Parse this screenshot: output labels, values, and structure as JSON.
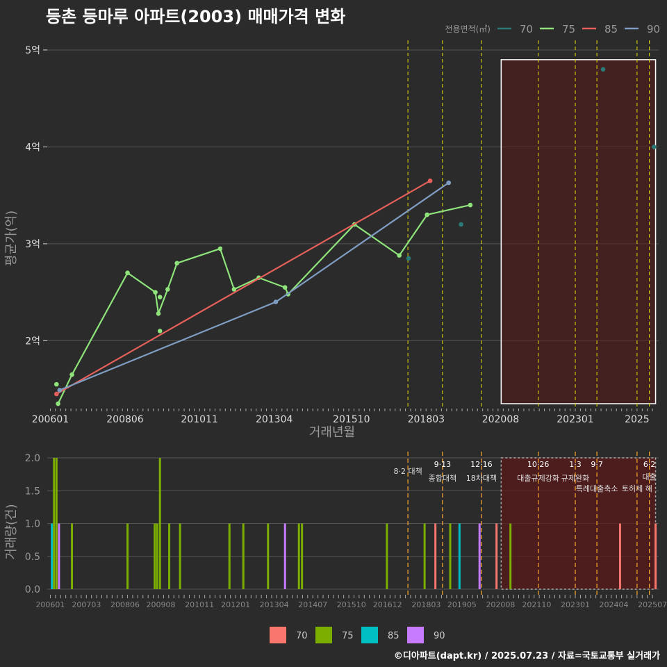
{
  "title": "등촌 등마루 아파트(2003) 매매가격 변화",
  "credit": "©디아파트(dapt.kr) / 2025.07.23 / 자료=국토교통부 실거래가",
  "colors": {
    "background": "#2b2b2b",
    "grid": "#555555",
    "price_70": "#2b7a78",
    "price_75": "#8ee37a",
    "price_85": "#e5605a",
    "price_90": "#7f9cc2",
    "bar_70": "#f8766d",
    "bar_75": "#7cae00",
    "bar_85": "#00bfc4",
    "bar_90": "#c77cff",
    "policy_line": "#e8e000",
    "policy_line_bottom": "#f0a030",
    "highlight_fill": "#5a1a1a",
    "text": "#dddddd",
    "axis_title": "#999999"
  },
  "chart_data": [
    {
      "type": "line",
      "title": "등촌 등마루 아파트(2003) 매매가격 변화",
      "xlabel": "거래년월",
      "ylabel": "평균가(억)",
      "ylim": [
        1.3,
        5.1
      ],
      "xlim": [
        2005.9,
        2025.7
      ],
      "x_tick_labels": [
        "200601",
        "200806",
        "201011",
        "201304",
        "201510",
        "201803",
        "202008",
        "202301",
        "2025"
      ],
      "x_tick_values": [
        2006.0,
        2008.42,
        2010.83,
        2013.25,
        2015.75,
        2018.17,
        2020.58,
        2023.0,
        2025.0
      ],
      "y_tick_labels": [
        "2억",
        "3억",
        "4억",
        "5억"
      ],
      "y_tick_values": [
        2,
        3,
        4,
        5
      ],
      "legend_title": "전용면적(㎡)",
      "legend_position": "top-right",
      "legend": [
        "70",
        "75",
        "85",
        "90"
      ],
      "series": [
        {
          "name": "70",
          "line": false,
          "points": [
            [
              2017.6,
              2.85
            ],
            [
              2019.3,
              3.2
            ],
            [
              2023.9,
              4.8
            ],
            [
              2025.55,
              4.0
            ]
          ]
        },
        {
          "name": "75",
          "line": true,
          "points": [
            [
              2006.25,
              1.35
            ],
            [
              2006.7,
              1.65
            ],
            [
              2008.5,
              2.7
            ],
            [
              2009.4,
              2.5
            ],
            [
              2009.5,
              2.28
            ],
            [
              2009.8,
              2.53
            ],
            [
              2010.1,
              2.8
            ],
            [
              2011.5,
              2.95
            ],
            [
              2011.95,
              2.53
            ],
            [
              2012.75,
              2.65
            ],
            [
              2013.6,
              2.55
            ],
            [
              2013.7,
              2.48
            ],
            [
              2015.85,
              3.2
            ],
            [
              2017.3,
              2.88
            ],
            [
              2018.2,
              3.3
            ],
            [
              2019.6,
              3.4
            ]
          ]
        },
        {
          "name": "75",
          "line": false,
          "points": [
            [
              2006.2,
              1.55
            ],
            [
              2009.55,
              2.45
            ],
            [
              2009.55,
              2.1
            ]
          ]
        },
        {
          "name": "85",
          "line": true,
          "points": [
            [
              2006.2,
              1.45
            ],
            [
              2018.3,
              3.65
            ]
          ]
        },
        {
          "name": "90",
          "line": true,
          "points": [
            [
              2006.3,
              1.49
            ],
            [
              2013.3,
              2.4
            ],
            [
              2018.9,
              3.63
            ]
          ]
        }
      ],
      "policy_lines": [
        2017.58,
        2018.7,
        2019.96,
        2021.8,
        2023.0,
        2023.7,
        2025.0,
        2025.4
      ],
      "highlight_range": [
        2020.6,
        2025.6
      ],
      "highlight_ylim": [
        1.35,
        4.9
      ]
    },
    {
      "type": "bar",
      "ylabel": "거래량(건)",
      "ylim": [
        0,
        2.0
      ],
      "y_tick_labels": [
        "0.0",
        "0.5",
        "1.0",
        "1.5",
        "2.0"
      ],
      "y_tick_values": [
        0,
        0.5,
        1.0,
        1.5,
        2.0
      ],
      "x_tick_labels": [
        "200601",
        "200703",
        "200806",
        "200908",
        "201011",
        "201201",
        "201304",
        "201407",
        "201510",
        "201612",
        "201803",
        "201905",
        "202008",
        "202110",
        "202301",
        "202404",
        "202507"
      ],
      "x_tick_values": [
        2006.0,
        2007.17,
        2008.42,
        2009.58,
        2010.83,
        2012.0,
        2013.25,
        2014.5,
        2015.75,
        2016.92,
        2018.17,
        2019.33,
        2020.58,
        2021.75,
        2023.0,
        2024.25,
        2025.5
      ],
      "legend": [
        "70",
        "75",
        "85",
        "90"
      ],
      "legend_position": "bottom",
      "bars": [
        {
          "x": 2006.05,
          "series": "85",
          "value": 1
        },
        {
          "x": 2006.12,
          "series": "75",
          "value": 2
        },
        {
          "x": 2006.2,
          "series": "75",
          "value": 2
        },
        {
          "x": 2006.28,
          "series": "90",
          "value": 1
        },
        {
          "x": 2006.7,
          "series": "75",
          "value": 1
        },
        {
          "x": 2008.5,
          "series": "75",
          "value": 1
        },
        {
          "x": 2009.38,
          "series": "75",
          "value": 1
        },
        {
          "x": 2009.46,
          "series": "75",
          "value": 1
        },
        {
          "x": 2009.55,
          "series": "75",
          "value": 2
        },
        {
          "x": 2009.85,
          "series": "75",
          "value": 1
        },
        {
          "x": 2010.2,
          "series": "75",
          "value": 1
        },
        {
          "x": 2011.8,
          "series": "75",
          "value": 1
        },
        {
          "x": 2012.25,
          "series": "75",
          "value": 1
        },
        {
          "x": 2013.05,
          "series": "75",
          "value": 1
        },
        {
          "x": 2013.6,
          "series": "90",
          "value": 1
        },
        {
          "x": 2014.05,
          "series": "75",
          "value": 1
        },
        {
          "x": 2014.15,
          "series": "75",
          "value": 1
        },
        {
          "x": 2016.9,
          "series": "75",
          "value": 1
        },
        {
          "x": 2018.12,
          "series": "75",
          "value": 1
        },
        {
          "x": 2018.47,
          "series": "70",
          "value": 1
        },
        {
          "x": 2018.95,
          "series": "75",
          "value": 1
        },
        {
          "x": 2019.25,
          "series": "85",
          "value": 1
        },
        {
          "x": 2019.9,
          "series": "90",
          "value": 1
        },
        {
          "x": 2020.45,
          "series": "70",
          "value": 1
        },
        {
          "x": 2020.9,
          "series": "75",
          "value": 1
        },
        {
          "x": 2024.45,
          "series": "70",
          "value": 1
        },
        {
          "x": 2025.6,
          "series": "70",
          "value": 1
        }
      ],
      "policy_lines": [
        2017.58,
        2018.7,
        2019.96,
        2021.8,
        2023.0,
        2023.7,
        2025.0,
        2025.4
      ],
      "highlight_range": [
        2020.6,
        2025.6
      ],
      "annotations": [
        {
          "x": 2017.58,
          "date": "",
          "label": "8·2 대책"
        },
        {
          "x": 2018.7,
          "date": "9·13",
          "label": "종합대책"
        },
        {
          "x": 2019.96,
          "date": "12·16",
          "label": "18차대책"
        },
        {
          "x": 2021.8,
          "date": "10·26",
          "label": "대출규제강화"
        },
        {
          "x": 2023.0,
          "date": "1·3",
          "label": "규제완화"
        },
        {
          "x": 2023.7,
          "date": "9·7",
          "label": "특례대출축소"
        },
        {
          "x": 2025.0,
          "date": "",
          "label": "토허제 해"
        },
        {
          "x": 2025.4,
          "date": "6·2",
          "label": "대출"
        }
      ]
    }
  ]
}
